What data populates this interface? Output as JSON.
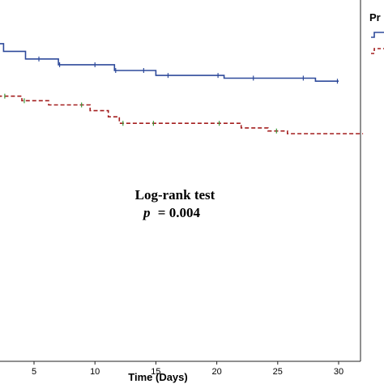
{
  "chart_data": {
    "type": "line",
    "subtype": "kaplan-meier-step",
    "xlabel": "Time (Days)",
    "xlim": [
      -2.8,
      32
    ],
    "x_ticks": [
      5,
      10,
      15,
      20,
      25,
      30
    ],
    "ylim": [
      0,
      1
    ],
    "grid": false,
    "legend_title": "Pr",
    "legend_placement": "right, outside plot",
    "annotation": {
      "line1": "Log-rank test",
      "line2_symbol": "p",
      "line2_value": "= 0.004"
    },
    "series": [
      {
        "color": "#2e4a9b",
        "dash": "solid",
        "steps": [
          [
            -2.8,
            0.965
          ],
          [
            -2.1,
            0.965
          ],
          [
            -2.1,
            0.925
          ],
          [
            2.5,
            0.925
          ],
          [
            2.5,
            0.905
          ],
          [
            4.3,
            0.905
          ],
          [
            4.3,
            0.885
          ],
          [
            7.0,
            0.885
          ],
          [
            7.0,
            0.87
          ],
          [
            11.6,
            0.87
          ],
          [
            11.6,
            0.855
          ],
          [
            15.0,
            0.855
          ],
          [
            15.0,
            0.842
          ],
          [
            20.6,
            0.842
          ],
          [
            20.6,
            0.835
          ],
          [
            28.1,
            0.835
          ],
          [
            28.1,
            0.827
          ],
          [
            30.0,
            0.827
          ]
        ],
        "censor_x": [
          5.4,
          7.1,
          10.0,
          11.7,
          14.0,
          16.0,
          20.1,
          23.0,
          27.1,
          29.9
        ]
      },
      {
        "color": "#a31e1e",
        "dash": "dashed",
        "steps": [
          [
            -2.8,
            0.888
          ],
          [
            -2.1,
            0.888
          ],
          [
            -2.1,
            0.823
          ],
          [
            0.3,
            0.823
          ],
          [
            0.3,
            0.805
          ],
          [
            2.1,
            0.805
          ],
          [
            2.1,
            0.788
          ],
          [
            4.0,
            0.788
          ],
          [
            4.0,
            0.776
          ],
          [
            6.2,
            0.776
          ],
          [
            6.2,
            0.765
          ],
          [
            9.6,
            0.765
          ],
          [
            9.6,
            0.75
          ],
          [
            11.1,
            0.75
          ],
          [
            11.1,
            0.734
          ],
          [
            12.0,
            0.734
          ],
          [
            12.0,
            0.717
          ],
          [
            22.0,
            0.717
          ],
          [
            22.0,
            0.705
          ],
          [
            24.2,
            0.705
          ],
          [
            24.2,
            0.697
          ],
          [
            25.8,
            0.697
          ],
          [
            25.8,
            0.69
          ],
          [
            32.0,
            0.69
          ]
        ],
        "censor_x": [
          -2.0,
          0.5,
          2.6,
          4.2,
          8.9,
          12.3,
          14.8,
          20.2,
          24.9
        ]
      }
    ]
  }
}
